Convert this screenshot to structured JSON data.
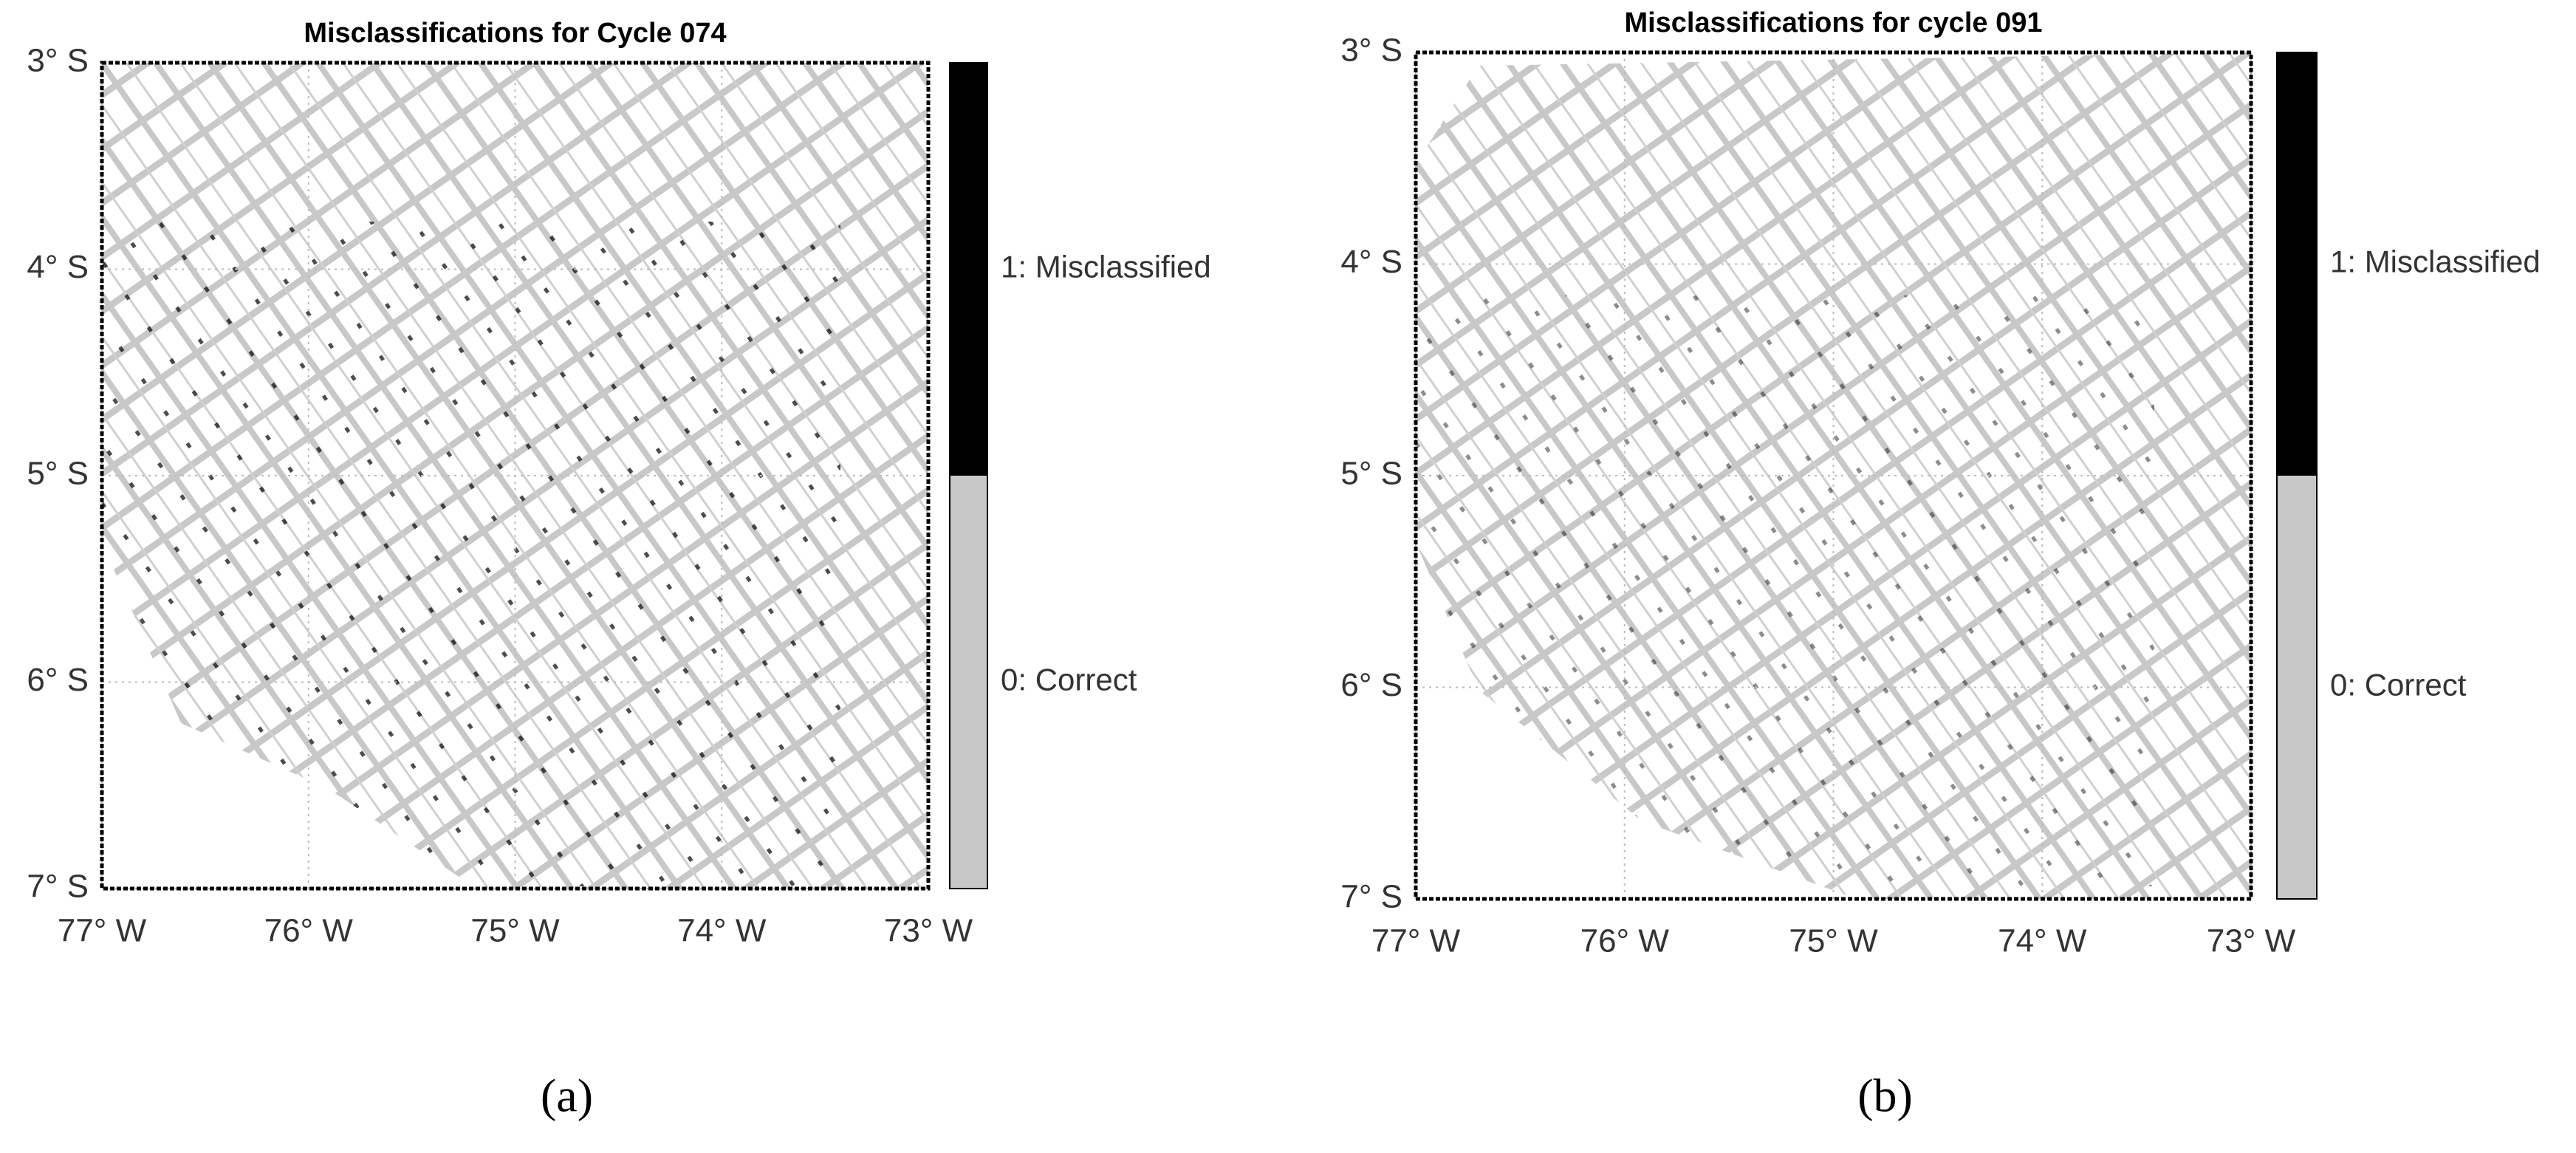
{
  "chart_data": [
    {
      "type": "map",
      "title": "Misclassifications for Cycle 074",
      "panel_label": "(a)",
      "xlim": [
        -77,
        -73
      ],
      "ylim": [
        -7,
        -3
      ],
      "xticks": [
        {
          "value": -77,
          "label": "77° W"
        },
        {
          "value": -76,
          "label": "76° W"
        },
        {
          "value": -75,
          "label": "75° W"
        },
        {
          "value": -74,
          "label": "74° W"
        },
        {
          "value": -73,
          "label": "73° W"
        }
      ],
      "yticks": [
        {
          "value": -3,
          "label": "3° S"
        },
        {
          "value": -4,
          "label": "4° S"
        },
        {
          "value": -5,
          "label": "5° S"
        },
        {
          "value": -6,
          "label": "6° S"
        },
        {
          "value": -7,
          "label": "7° S"
        }
      ],
      "grid": true,
      "colorbar": {
        "colors": [
          "#c8c8c8",
          "#000000"
        ],
        "labels": [
          "0: Correct",
          "1: Misclassified"
        ]
      }
    },
    {
      "type": "map",
      "title": "Misclassifications for cycle 091",
      "panel_label": "(b)",
      "xlim": [
        -77,
        -73
      ],
      "ylim": [
        -7,
        -3
      ],
      "xticks": [
        {
          "value": -77,
          "label": "77° W"
        },
        {
          "value": -76,
          "label": "76° W"
        },
        {
          "value": -75,
          "label": "75° W"
        },
        {
          "value": -74,
          "label": "74° W"
        },
        {
          "value": -73,
          "label": "73° W"
        }
      ],
      "yticks": [
        {
          "value": -3,
          "label": "3° S"
        },
        {
          "value": -4,
          "label": "4° S"
        },
        {
          "value": -5,
          "label": "5° S"
        },
        {
          "value": -6,
          "label": "6° S"
        },
        {
          "value": -7,
          "label": "7° S"
        }
      ],
      "grid": true,
      "colorbar": {
        "colors": [
          "#c8c8c8",
          "#000000"
        ],
        "labels": [
          "0: Correct",
          "1: Misclassified"
        ]
      }
    }
  ]
}
